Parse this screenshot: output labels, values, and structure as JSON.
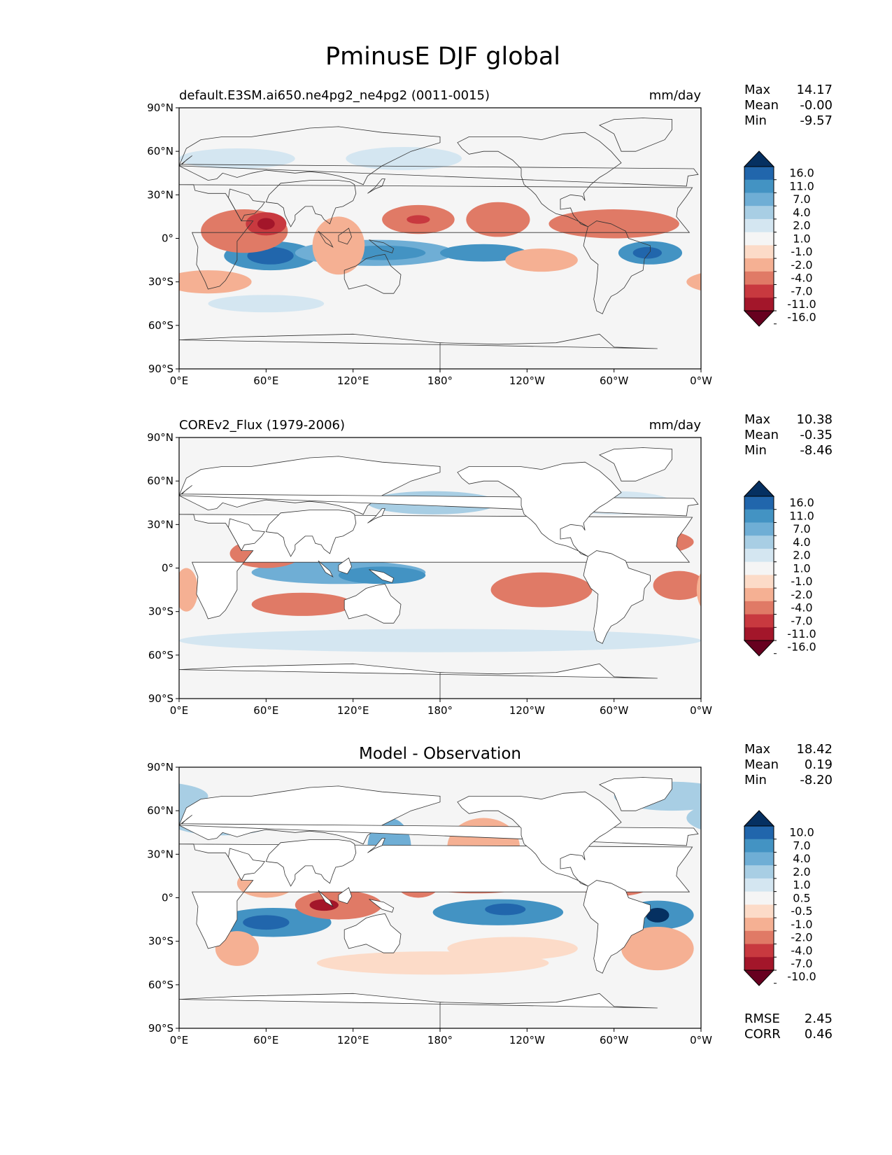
{
  "figure": {
    "title": "PminusE DJF global"
  },
  "axes_ticks": {
    "x": [
      "0°E",
      "60°E",
      "120°E",
      "180°",
      "120°W",
      "60°W",
      "0°W"
    ],
    "y": [
      "90°N",
      "60°N",
      "30°N",
      "0°",
      "30°S",
      "60°S",
      "90°S"
    ]
  },
  "chart_data": [
    {
      "type": "heatmap",
      "panel": "model",
      "left_title": "default.E3SM.ai650.ne4pg2_ne4pg2 (0011-0015)",
      "right_title": "mm/day",
      "center_title": "",
      "stats": [
        {
          "label": "Max",
          "value": "14.17"
        },
        {
          "label": "Mean",
          "value": "-0.00"
        },
        {
          "label": "Min",
          "value": "-9.57"
        }
      ],
      "colorbar_levels": [
        "16.0",
        "11.0",
        "7.0",
        "4.0",
        "2.0",
        "1.0",
        "-1.0",
        "-2.0",
        "-4.0",
        "-7.0",
        "-11.0",
        "-16.0"
      ],
      "colorbar_colors": [
        "#053061",
        "#2166ac",
        "#4393c3",
        "#6faed5",
        "#a8cee4",
        "#d4e6f1",
        "#f5f5f5",
        "#fcdbc8",
        "#f5b093",
        "#e07a66",
        "#c8393f",
        "#a3162a",
        "#67001f"
      ],
      "xlim": [
        0,
        360
      ],
      "ylim": [
        -90,
        90
      ],
      "blobs": [
        {
          "lon": 63,
          "lat": -12,
          "rx": 32,
          "ry": 10,
          "v": 4
        },
        {
          "lon": 63,
          "lat": -12,
          "rx": 16,
          "ry": 6,
          "v": 5
        },
        {
          "lon": 135,
          "lat": -10,
          "rx": 55,
          "ry": 9,
          "v": 3
        },
        {
          "lon": 140,
          "lat": -10,
          "rx": 30,
          "ry": 5,
          "v": 4
        },
        {
          "lon": 210,
          "lat": -10,
          "rx": 30,
          "ry": 6,
          "v": 4
        },
        {
          "lon": 325,
          "lat": -10,
          "rx": 22,
          "ry": 8,
          "v": 4
        },
        {
          "lon": 323,
          "lat": -10,
          "rx": 10,
          "ry": 4,
          "v": 5
        },
        {
          "lon": 45,
          "lat": 5,
          "rx": 30,
          "ry": 15,
          "v": -3
        },
        {
          "lon": 60,
          "lat": 10,
          "rx": 14,
          "ry": 8,
          "v": -4
        },
        {
          "lon": 60,
          "lat": 10,
          "rx": 6,
          "ry": 4,
          "v": -5
        },
        {
          "lon": 110,
          "lat": -5,
          "rx": 18,
          "ry": 20,
          "v": -2
        },
        {
          "lon": 165,
          "lat": 13,
          "rx": 25,
          "ry": 10,
          "v": -3
        },
        {
          "lon": 165,
          "lat": 13,
          "rx": 8,
          "ry": 3,
          "v": -4
        },
        {
          "lon": 220,
          "lat": 13,
          "rx": 22,
          "ry": 12,
          "v": -3
        },
        {
          "lon": 300,
          "lat": 10,
          "rx": 45,
          "ry": 10,
          "v": -3
        },
        {
          "lon": 250,
          "lat": -15,
          "rx": 25,
          "ry": 8,
          "v": -2
        },
        {
          "lon": 20,
          "lat": -30,
          "rx": 30,
          "ry": 8,
          "v": -2
        },
        {
          "lon": 155,
          "lat": 55,
          "rx": 40,
          "ry": 8,
          "v": 1
        },
        {
          "lon": 40,
          "lat": 55,
          "rx": 40,
          "ry": 7,
          "v": 1
        },
        {
          "lon": 60,
          "lat": -45,
          "rx": 40,
          "ry": 6,
          "v": 1
        }
      ]
    },
    {
      "type": "heatmap",
      "panel": "observation",
      "left_title": "COREv2_Flux (1979-2006)",
      "right_title": "mm/day",
      "center_title": "",
      "stats": [
        {
          "label": "Max",
          "value": "10.38"
        },
        {
          "label": "Mean",
          "value": "-0.35"
        },
        {
          "label": "Min",
          "value": "-8.46"
        }
      ],
      "colorbar_levels": [
        "16.0",
        "11.0",
        "7.0",
        "4.0",
        "2.0",
        "1.0",
        "-1.0",
        "-2.0",
        "-4.0",
        "-7.0",
        "-11.0",
        "-16.0"
      ],
      "colorbar_colors": [
        "#053061",
        "#2166ac",
        "#4393c3",
        "#6faed5",
        "#a8cee4",
        "#d4e6f1",
        "#f5f5f5",
        "#fcdbc8",
        "#f5b093",
        "#e07a66",
        "#c8393f",
        "#a3162a",
        "#67001f"
      ],
      "xlim": [
        0,
        360
      ],
      "ylim": [
        -90,
        90
      ],
      "blobs": [
        {
          "lon": 110,
          "lat": -3,
          "rx": 60,
          "ry": 8,
          "v": 3
        },
        {
          "lon": 140,
          "lat": -5,
          "rx": 30,
          "ry": 6,
          "v": 4
        },
        {
          "lon": 230,
          "lat": 8,
          "rx": 60,
          "ry": 4,
          "v": 2
        },
        {
          "lon": 175,
          "lat": 45,
          "rx": 45,
          "ry": 8,
          "v": 2
        },
        {
          "lon": 300,
          "lat": 45,
          "rx": 40,
          "ry": 8,
          "v": 1
        },
        {
          "lon": 180,
          "lat": -50,
          "rx": 180,
          "ry": 8,
          "v": 1
        },
        {
          "lon": 160,
          "lat": 20,
          "rx": 40,
          "ry": 10,
          "v": -3
        },
        {
          "lon": 310,
          "lat": 18,
          "rx": 45,
          "ry": 10,
          "v": -3
        },
        {
          "lon": 60,
          "lat": 10,
          "rx": 25,
          "ry": 10,
          "v": -3
        },
        {
          "lon": 85,
          "lat": -25,
          "rx": 35,
          "ry": 8,
          "v": -3
        },
        {
          "lon": 250,
          "lat": -15,
          "rx": 35,
          "ry": 12,
          "v": -3
        },
        {
          "lon": 345,
          "lat": -12,
          "rx": 18,
          "ry": 10,
          "v": -3
        },
        {
          "lon": 5,
          "lat": -15,
          "rx": 8,
          "ry": 15,
          "v": -2
        }
      ]
    },
    {
      "type": "heatmap",
      "panel": "difference",
      "left_title": "",
      "right_title": "",
      "center_title": "Model - Observation",
      "stats": [
        {
          "label": "Max",
          "value": "18.42"
        },
        {
          "label": "Mean",
          "value": "0.19"
        },
        {
          "label": "Min",
          "value": "-8.20"
        }
      ],
      "bottom_stats": [
        {
          "label": "RMSE",
          "value": "2.45"
        },
        {
          "label": "CORR",
          "value": "0.46"
        }
      ],
      "colorbar_levels": [
        "10.0",
        "7.0",
        "4.0",
        "2.0",
        "1.0",
        "0.5",
        "-0.5",
        "-1.0",
        "-2.0",
        "-4.0",
        "-7.0",
        "-10.0"
      ],
      "colorbar_colors": [
        "#053061",
        "#2166ac",
        "#4393c3",
        "#6faed5",
        "#a8cee4",
        "#d4e6f1",
        "#f5f5f5",
        "#fcdbc8",
        "#f5b093",
        "#e07a66",
        "#c8393f",
        "#a3162a",
        "#67001f"
      ],
      "xlim": [
        0,
        360
      ],
      "ylim": [
        -90,
        90
      ],
      "blobs": [
        {
          "lon": 65,
          "lat": -17,
          "rx": 40,
          "ry": 10,
          "v": 4
        },
        {
          "lon": 60,
          "lat": -17,
          "rx": 16,
          "ry": 5,
          "v": 5
        },
        {
          "lon": 220,
          "lat": -10,
          "rx": 45,
          "ry": 9,
          "v": 4
        },
        {
          "lon": 225,
          "lat": -8,
          "rx": 14,
          "ry": 4,
          "v": 5
        },
        {
          "lon": 330,
          "lat": -12,
          "rx": 25,
          "ry": 10,
          "v": 4
        },
        {
          "lon": 330,
          "lat": -12,
          "rx": 8,
          "ry": 5,
          "v": 6
        },
        {
          "lon": 145,
          "lat": 35,
          "rx": 15,
          "ry": 20,
          "v": 3
        },
        {
          "lon": 290,
          "lat": 25,
          "rx": 30,
          "ry": 10,
          "v": 2
        },
        {
          "lon": 30,
          "lat": 55,
          "rx": 40,
          "ry": 12,
          "v": 2
        },
        {
          "lon": 340,
          "lat": 70,
          "rx": 40,
          "ry": 10,
          "v": 2
        },
        {
          "lon": 110,
          "lat": -5,
          "rx": 30,
          "ry": 10,
          "v": -3
        },
        {
          "lon": 100,
          "lat": -5,
          "rx": 10,
          "ry": 4,
          "v": -5
        },
        {
          "lon": 205,
          "lat": 8,
          "rx": 35,
          "ry": 5,
          "v": -3
        },
        {
          "lon": 300,
          "lat": 8,
          "rx": 25,
          "ry": 7,
          "v": -3
        },
        {
          "lon": 165,
          "lat": 10,
          "rx": 15,
          "ry": 10,
          "v": -3
        },
        {
          "lon": 210,
          "lat": 35,
          "rx": 25,
          "ry": 20,
          "v": -2
        },
        {
          "lon": 60,
          "lat": 10,
          "rx": 20,
          "ry": 10,
          "v": -2
        },
        {
          "lon": 175,
          "lat": -45,
          "rx": 80,
          "ry": 8,
          "v": -1
        },
        {
          "lon": 330,
          "lat": -35,
          "rx": 25,
          "ry": 15,
          "v": -2
        },
        {
          "lon": 40,
          "lat": -35,
          "rx": 15,
          "ry": 12,
          "v": -2
        },
        {
          "lon": 230,
          "lat": -35,
          "rx": 45,
          "ry": 8,
          "v": -1
        }
      ]
    }
  ]
}
